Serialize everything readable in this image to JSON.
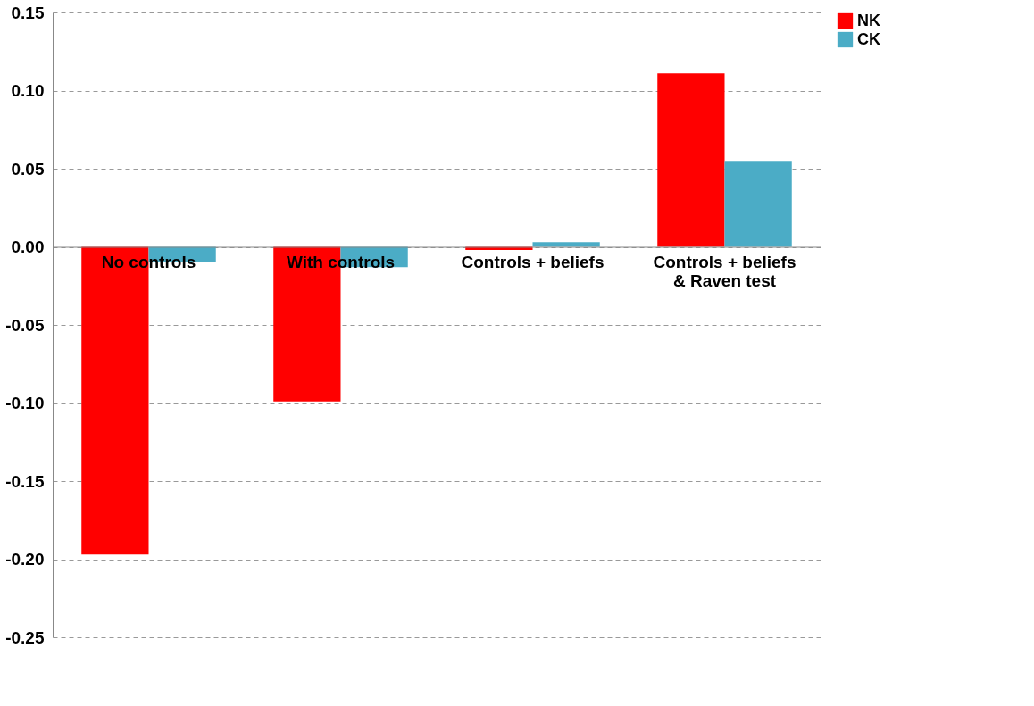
{
  "chart_data": {
    "type": "bar",
    "categories": [
      "No controls",
      "With controls",
      "Controls + beliefs",
      "Controls + beliefs\n& Raven test"
    ],
    "series": [
      {
        "name": "NK",
        "color": "#ff0000",
        "values": [
          -0.197,
          -0.099,
          -0.002,
          0.111
        ]
      },
      {
        "name": "CK",
        "color": "#4bacc6",
        "values": [
          -0.01,
          -0.013,
          0.003,
          0.055
        ]
      }
    ],
    "ylim": [
      -0.25,
      0.15
    ],
    "yticks": [
      {
        "value": -0.25,
        "label": "-0.25"
      },
      {
        "value": -0.2,
        "label": "-0.20"
      },
      {
        "value": -0.15,
        "label": "-0.15"
      },
      {
        "value": -0.1,
        "label": "-0.10"
      },
      {
        "value": -0.05,
        "label": "-0.05"
      },
      {
        "value": 0,
        "label": "0.00"
      },
      {
        "value": 0.05,
        "label": "0.05"
      },
      {
        "value": 0.1,
        "label": "0.10"
      },
      {
        "value": 0.15,
        "label": "0.15"
      }
    ],
    "grid": "y",
    "legend": "right"
  }
}
